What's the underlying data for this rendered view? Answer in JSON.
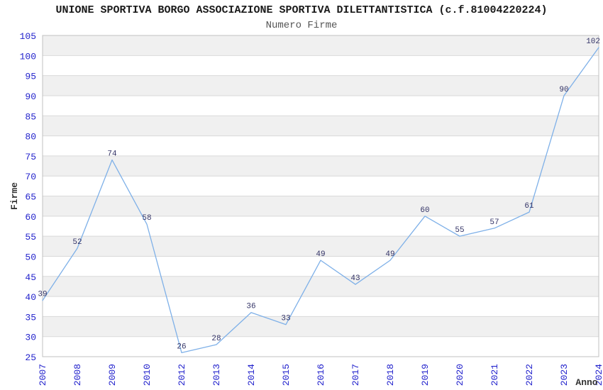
{
  "header": {
    "title": "UNIONE SPORTIVA BORGO ASSOCIAZIONE SPORTIVA DILETTANTISTICA (c.f.81004220224)",
    "subtitle": "Numero Firme"
  },
  "chart_data": {
    "type": "line",
    "title": "UNIONE SPORTIVA BORGO ASSOCIAZIONE SPORTIVA DILETTANTISTICA (c.f.81004220224)",
    "subtitle": "Numero Firme",
    "xlabel": "Anno",
    "ylabel": "Firme",
    "categories": [
      "2007",
      "2008",
      "2009",
      "2010",
      "2012",
      "2013",
      "2014",
      "2015",
      "2016",
      "2017",
      "2018",
      "2019",
      "2020",
      "2021",
      "2022",
      "2023",
      "2024"
    ],
    "values": [
      39,
      52,
      74,
      58,
      26,
      28,
      36,
      33,
      49,
      43,
      49,
      60,
      55,
      57,
      61,
      90,
      102
    ],
    "ylim": [
      25,
      105
    ],
    "ytick_step": 5,
    "grid": true,
    "legend_position": "none",
    "band_alternation": "gray-on-odd-bands-from-bottom",
    "x_tick_rotation": -90,
    "colors": {
      "line": "#7EB0E8",
      "tick_label": "#2222CC",
      "data_label": "#333366",
      "band": "#F0F0F0",
      "gridline": "#D9D9D9",
      "border": "#C0C0C0",
      "axis_title": "#333333",
      "title": "#1A1A1A",
      "subtitle": "#555555"
    }
  }
}
